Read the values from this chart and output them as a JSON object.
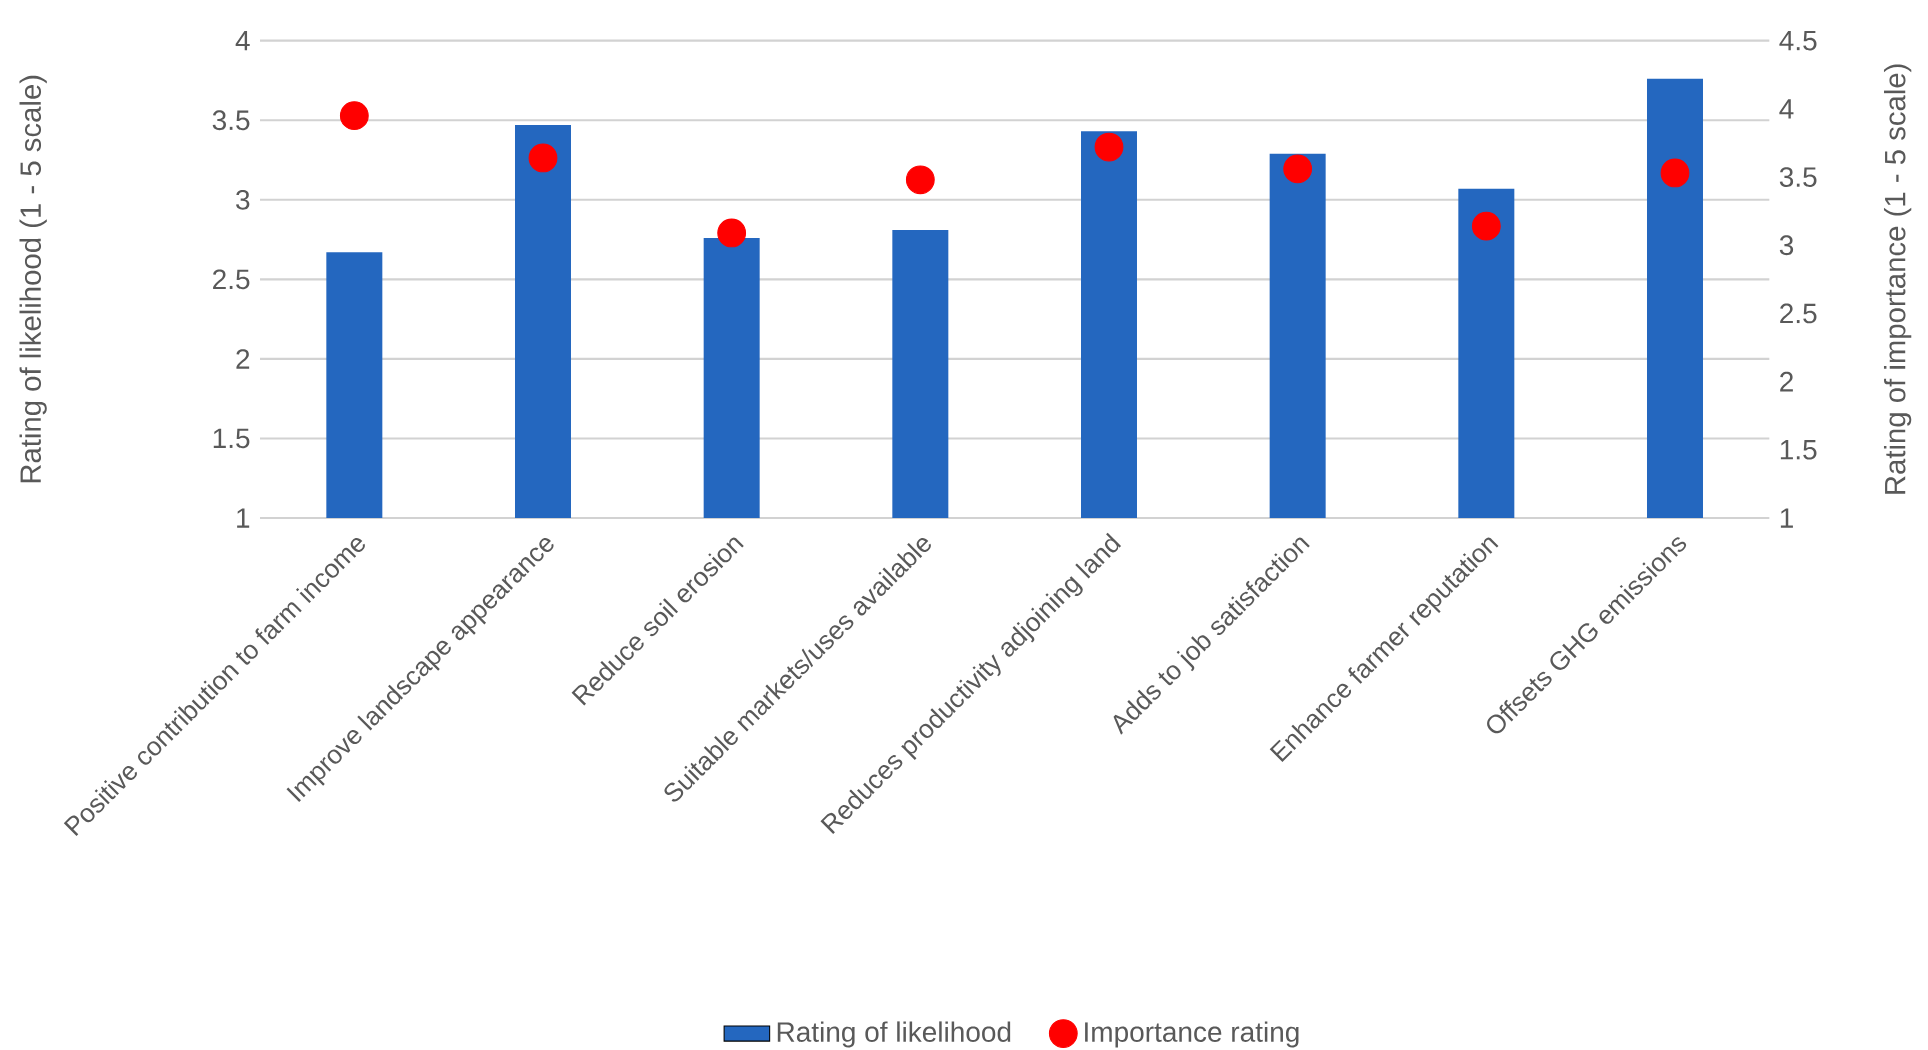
{
  "chart_data": {
    "type": "bar",
    "categories": [
      "Positive contribution to farm income",
      "Improve landscape appearance",
      "Reduce soil erosion",
      "Suitable markets/uses available",
      "Reduces productivity adjoining land",
      "Adds to job satisfaction",
      "Enhance farmer reputation",
      "Offsets GHG emissions"
    ],
    "series": [
      {
        "name": "Rating of likelihood",
        "color": "#2467bf",
        "values": [
          2.67,
          3.47,
          2.76,
          2.81,
          3.43,
          3.29,
          3.07,
          3.76
        ]
      },
      {
        "name": "Importance rating",
        "type": "scatter",
        "axis": "y2",
        "marker": "circle",
        "color": "#ff0000",
        "values": [
          3.95,
          3.64,
          3.09,
          3.48,
          3.72,
          3.56,
          3.14,
          3.53
        ]
      }
    ],
    "ylabel": "Rating of likelihood (1 - 5 scale)",
    "y2label": "Rating of importance (1 - 5 scale)",
    "ylim": [
      1,
      4
    ],
    "yticks": [
      1,
      1.5,
      2,
      2.5,
      3,
      3.5,
      4
    ],
    "y2lim": [
      1,
      4.5
    ],
    "y2ticks": [
      1,
      1.5,
      2,
      2.5,
      3,
      3.5,
      4,
      4.5
    ],
    "grid": "y",
    "legend": "bottom"
  }
}
